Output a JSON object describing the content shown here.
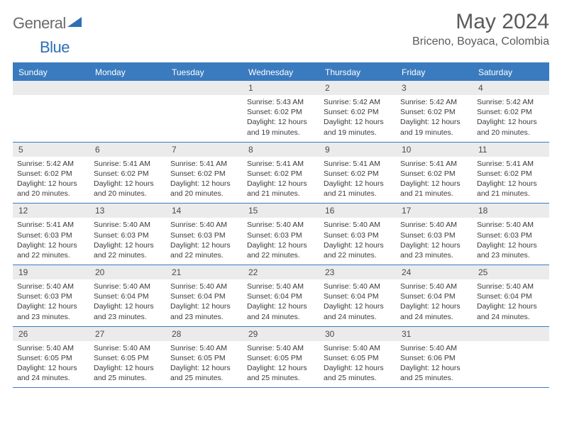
{
  "logo": {
    "gray": "General",
    "blue": "Blue"
  },
  "title": "May 2024",
  "location": "Briceno, Boyaca, Colombia",
  "colors": {
    "header_bg": "#3a7bbf",
    "header_text": "#ffffff",
    "daynum_bg": "#ebebeb",
    "text": "#3a3a3a",
    "title_text": "#5a5a5a",
    "logo_gray": "#6b6b6b",
    "logo_blue": "#2d6fb5"
  },
  "weekdays": [
    "Sunday",
    "Monday",
    "Tuesday",
    "Wednesday",
    "Thursday",
    "Friday",
    "Saturday"
  ],
  "weeks": [
    [
      null,
      null,
      null,
      {
        "n": "1",
        "sr": "5:43 AM",
        "ss": "6:02 PM",
        "dl": "12 hours and 19 minutes."
      },
      {
        "n": "2",
        "sr": "5:42 AM",
        "ss": "6:02 PM",
        "dl": "12 hours and 19 minutes."
      },
      {
        "n": "3",
        "sr": "5:42 AM",
        "ss": "6:02 PM",
        "dl": "12 hours and 19 minutes."
      },
      {
        "n": "4",
        "sr": "5:42 AM",
        "ss": "6:02 PM",
        "dl": "12 hours and 20 minutes."
      }
    ],
    [
      {
        "n": "5",
        "sr": "5:42 AM",
        "ss": "6:02 PM",
        "dl": "12 hours and 20 minutes."
      },
      {
        "n": "6",
        "sr": "5:41 AM",
        "ss": "6:02 PM",
        "dl": "12 hours and 20 minutes."
      },
      {
        "n": "7",
        "sr": "5:41 AM",
        "ss": "6:02 PM",
        "dl": "12 hours and 20 minutes."
      },
      {
        "n": "8",
        "sr": "5:41 AM",
        "ss": "6:02 PM",
        "dl": "12 hours and 21 minutes."
      },
      {
        "n": "9",
        "sr": "5:41 AM",
        "ss": "6:02 PM",
        "dl": "12 hours and 21 minutes."
      },
      {
        "n": "10",
        "sr": "5:41 AM",
        "ss": "6:02 PM",
        "dl": "12 hours and 21 minutes."
      },
      {
        "n": "11",
        "sr": "5:41 AM",
        "ss": "6:02 PM",
        "dl": "12 hours and 21 minutes."
      }
    ],
    [
      {
        "n": "12",
        "sr": "5:41 AM",
        "ss": "6:03 PM",
        "dl": "12 hours and 22 minutes."
      },
      {
        "n": "13",
        "sr": "5:40 AM",
        "ss": "6:03 PM",
        "dl": "12 hours and 22 minutes."
      },
      {
        "n": "14",
        "sr": "5:40 AM",
        "ss": "6:03 PM",
        "dl": "12 hours and 22 minutes."
      },
      {
        "n": "15",
        "sr": "5:40 AM",
        "ss": "6:03 PM",
        "dl": "12 hours and 22 minutes."
      },
      {
        "n": "16",
        "sr": "5:40 AM",
        "ss": "6:03 PM",
        "dl": "12 hours and 22 minutes."
      },
      {
        "n": "17",
        "sr": "5:40 AM",
        "ss": "6:03 PM",
        "dl": "12 hours and 23 minutes."
      },
      {
        "n": "18",
        "sr": "5:40 AM",
        "ss": "6:03 PM",
        "dl": "12 hours and 23 minutes."
      }
    ],
    [
      {
        "n": "19",
        "sr": "5:40 AM",
        "ss": "6:03 PM",
        "dl": "12 hours and 23 minutes."
      },
      {
        "n": "20",
        "sr": "5:40 AM",
        "ss": "6:04 PM",
        "dl": "12 hours and 23 minutes."
      },
      {
        "n": "21",
        "sr": "5:40 AM",
        "ss": "6:04 PM",
        "dl": "12 hours and 23 minutes."
      },
      {
        "n": "22",
        "sr": "5:40 AM",
        "ss": "6:04 PM",
        "dl": "12 hours and 24 minutes."
      },
      {
        "n": "23",
        "sr": "5:40 AM",
        "ss": "6:04 PM",
        "dl": "12 hours and 24 minutes."
      },
      {
        "n": "24",
        "sr": "5:40 AM",
        "ss": "6:04 PM",
        "dl": "12 hours and 24 minutes."
      },
      {
        "n": "25",
        "sr": "5:40 AM",
        "ss": "6:04 PM",
        "dl": "12 hours and 24 minutes."
      }
    ],
    [
      {
        "n": "26",
        "sr": "5:40 AM",
        "ss": "6:05 PM",
        "dl": "12 hours and 24 minutes."
      },
      {
        "n": "27",
        "sr": "5:40 AM",
        "ss": "6:05 PM",
        "dl": "12 hours and 25 minutes."
      },
      {
        "n": "28",
        "sr": "5:40 AM",
        "ss": "6:05 PM",
        "dl": "12 hours and 25 minutes."
      },
      {
        "n": "29",
        "sr": "5:40 AM",
        "ss": "6:05 PM",
        "dl": "12 hours and 25 minutes."
      },
      {
        "n": "30",
        "sr": "5:40 AM",
        "ss": "6:05 PM",
        "dl": "12 hours and 25 minutes."
      },
      {
        "n": "31",
        "sr": "5:40 AM",
        "ss": "6:06 PM",
        "dl": "12 hours and 25 minutes."
      },
      null
    ]
  ],
  "labels": {
    "sunrise": "Sunrise:",
    "sunset": "Sunset:",
    "daylight": "Daylight:"
  }
}
